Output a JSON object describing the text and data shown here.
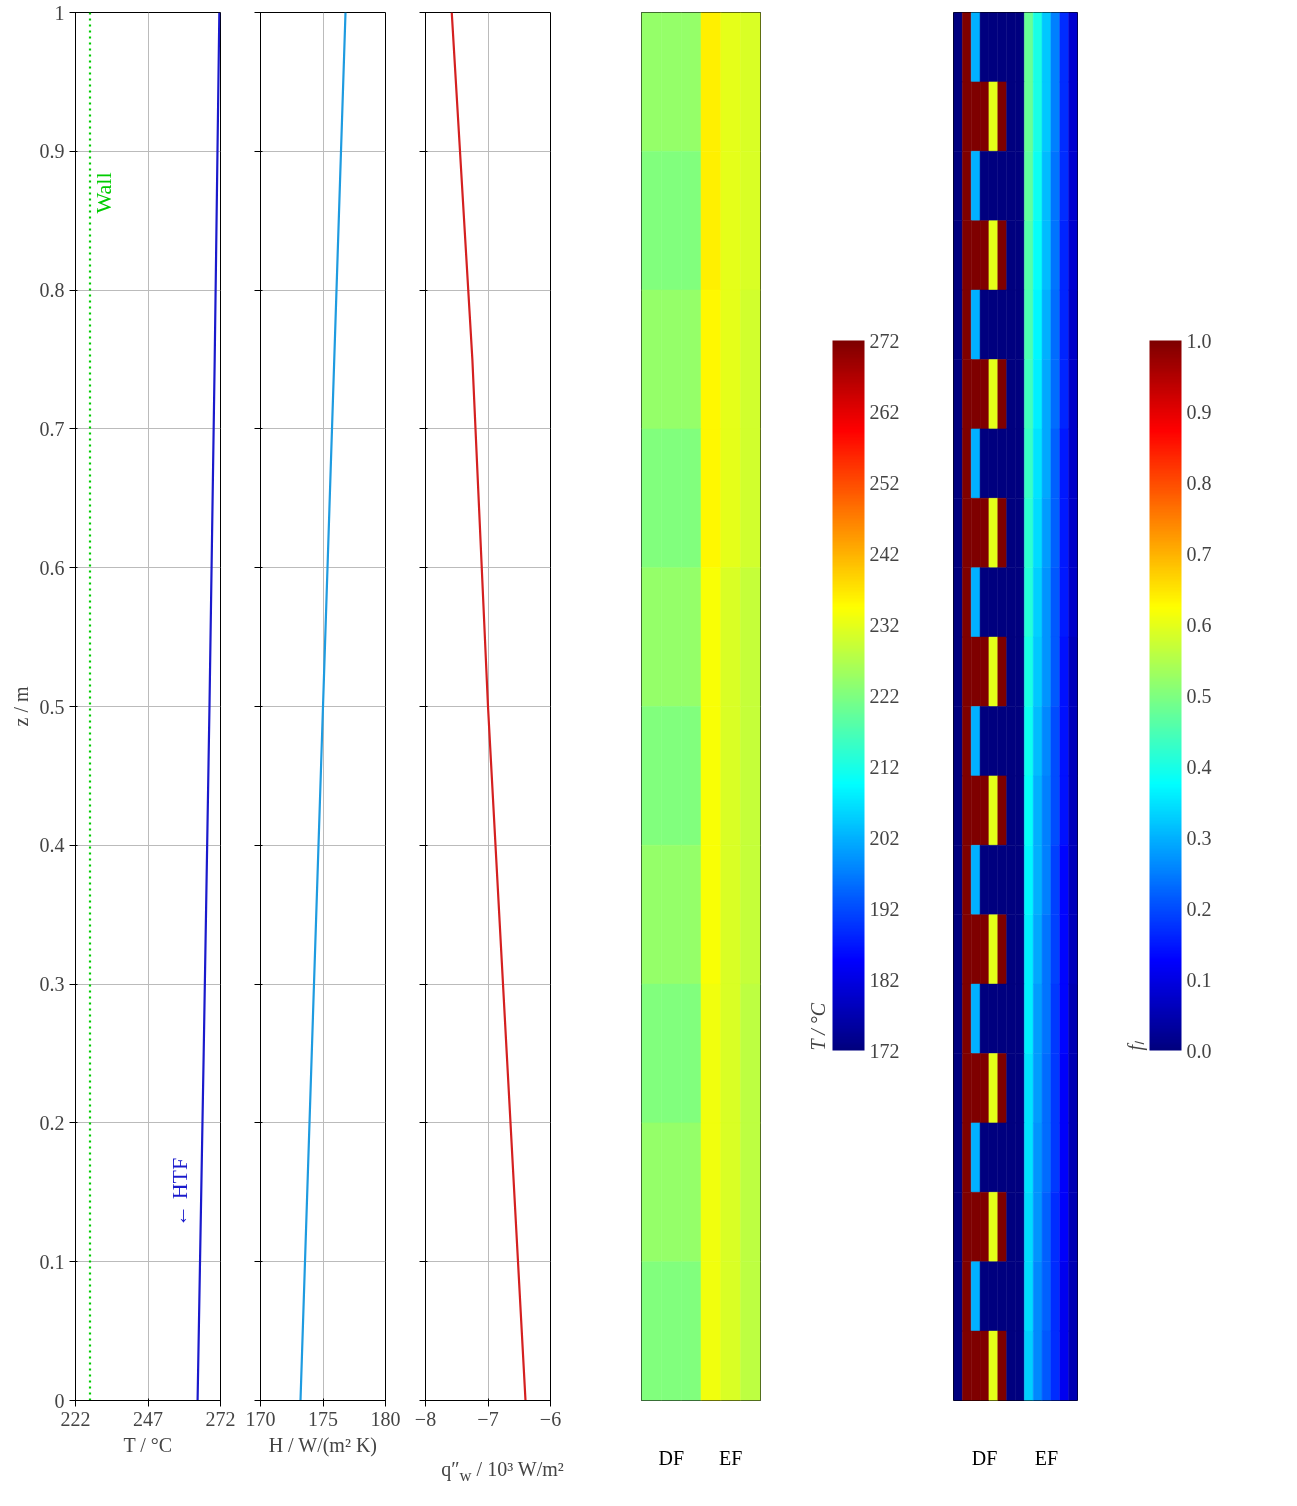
{
  "chart_data": [
    {
      "type": "line",
      "ylabel": "z / m",
      "xlabel": "T / °C",
      "xlim": [
        222,
        272
      ],
      "xticks": [
        222,
        247,
        272
      ],
      "ylim": [
        0,
        1
      ],
      "yticks": [
        0,
        0.1,
        0.2,
        0.3,
        0.4,
        0.5,
        0.6,
        0.7,
        0.8,
        0.9,
        1
      ],
      "grid": true,
      "series": [
        {
          "name": "Wall",
          "color": "#00cc00",
          "line_style": "dotted",
          "x": [
            227,
            227
          ],
          "values": [
            0,
            1
          ]
        },
        {
          "name": "← HTF",
          "color": "#1a1acc",
          "x": [
            264.1,
            266.2,
            268.2,
            270.0,
            271.6
          ],
          "values": [
            0,
            0.25,
            0.5,
            0.75,
            1
          ]
        }
      ]
    },
    {
      "type": "line",
      "xlabel": "H / W/(m² K)",
      "xlim": [
        170,
        180
      ],
      "xticks": [
        170,
        175,
        180
      ],
      "ylim": [
        0,
        1
      ],
      "yticks": [
        0,
        0.1,
        0.2,
        0.3,
        0.4,
        0.5,
        0.6,
        0.7,
        0.8,
        0.9,
        1
      ],
      "grid": true,
      "tick_labels": "x",
      "series": [
        {
          "color": "#1e9be0",
          "x": [
            173.2,
            174.1,
            175.0,
            175.9,
            176.8
          ],
          "values": [
            0,
            0.25,
            0.5,
            0.75,
            1
          ]
        }
      ]
    },
    {
      "type": "line",
      "xlabel": "q″$_{w}$ / 10³ W/m²",
      "xlim": [
        -8,
        -6
      ],
      "xticks": [
        {
          "value": -8,
          "label": "−8"
        },
        {
          "value": -7,
          "label": "−7"
        },
        {
          "value": -6,
          "label": "−6"
        }
      ],
      "ylim": [
        0,
        1
      ],
      "yticks": [
        0,
        0.1,
        0.2,
        0.3,
        0.4,
        0.5,
        0.6,
        0.7,
        0.8,
        0.9,
        1
      ],
      "grid": true,
      "tick_labels": "x",
      "series": [
        {
          "color": "#d42020",
          "x": [
            -6.4,
            -6.7,
            -7.0,
            -7.25,
            -7.58
          ],
          "values": [
            0,
            0.25,
            0.5,
            0.75,
            1
          ]
        }
      ]
    },
    {
      "type": "heatmap",
      "categories": [
        null,
        "DF",
        null,
        null,
        "EF",
        null
      ],
      "y_categories": [
        null,
        null,
        null,
        null,
        null,
        null,
        null,
        null,
        null,
        null
      ],
      "tick_labels": "x",
      "clim": [
        172,
        272
      ],
      "clabel": "T / °C",
      "cticks": [
        172,
        182,
        192,
        202,
        212,
        222,
        232,
        242,
        252,
        262,
        272
      ],
      "cells": [
        [
          224,
          224,
          224,
          236,
          232,
          231
        ],
        [
          222,
          222,
          222,
          236,
          232,
          231
        ],
        [
          224,
          224,
          224,
          235,
          232,
          230
        ],
        [
          222,
          222,
          222,
          235,
          232,
          230
        ],
        [
          224,
          224,
          224,
          234,
          231,
          229
        ],
        [
          222,
          222,
          222,
          234,
          231,
          229
        ],
        [
          224,
          224,
          224,
          234,
          231,
          229
        ],
        [
          222,
          222,
          222,
          233,
          231,
          228
        ],
        [
          224,
          224,
          224,
          233,
          231,
          228
        ],
        [
          222,
          222,
          222,
          233,
          231,
          228
        ]
      ]
    },
    {
      "type": "heatmap",
      "categories": [
        null,
        null,
        null,
        "DF",
        null,
        null,
        null,
        null,
        null,
        null,
        "EF",
        null,
        null,
        null
      ],
      "y_categories": [
        null,
        null,
        null,
        null,
        null,
        null,
        null,
        null,
        null,
        null,
        null,
        null,
        null,
        null,
        null,
        null,
        null,
        null,
        null,
        null
      ],
      "tick_labels": "x",
      "clim": [
        0,
        1
      ],
      "clabel": "fₗ",
      "cticks": [
        {
          "value": 0,
          "label": "0.0"
        },
        0.1,
        0.2,
        0.3,
        0.4,
        0.5,
        0.6,
        0.7,
        0.8,
        0.9,
        {
          "value": 1,
          "label": "1.0"
        }
      ],
      "cells": [
        [
          0,
          1,
          0.3,
          0,
          0,
          0,
          0,
          0,
          0.48,
          0.4,
          0.32,
          0.25,
          0.17,
          0.08
        ],
        [
          0,
          1,
          1,
          1,
          0.6,
          1,
          0,
          0,
          0.48,
          0.4,
          0.32,
          0.25,
          0.17,
          0.08
        ],
        [
          0,
          1,
          0.3,
          0,
          0,
          0,
          0,
          0,
          0.47,
          0.39,
          0.31,
          0.24,
          0.17,
          0.08
        ],
        [
          0,
          1,
          1,
          1,
          0.6,
          1,
          0,
          0,
          0.46,
          0.38,
          0.31,
          0.24,
          0.16,
          0.08
        ],
        [
          0,
          1,
          0.3,
          0,
          0,
          0,
          0,
          0,
          0.45,
          0.37,
          0.3,
          0.23,
          0.16,
          0.07
        ],
        [
          0,
          1,
          1,
          1,
          0.6,
          1,
          0,
          0,
          0.44,
          0.36,
          0.29,
          0.23,
          0.16,
          0.07
        ],
        [
          0,
          1,
          0.3,
          0,
          0,
          0,
          0,
          0,
          0.43,
          0.35,
          0.29,
          0.22,
          0.15,
          0.07
        ],
        [
          0,
          1,
          1,
          1,
          0.6,
          1,
          0,
          0,
          0.42,
          0.34,
          0.28,
          0.22,
          0.15,
          0.07
        ],
        [
          0,
          1,
          0.3,
          0,
          0,
          0,
          0,
          0,
          0.41,
          0.33,
          0.27,
          0.21,
          0.15,
          0.07
        ],
        [
          0,
          1,
          1,
          1,
          0.6,
          1,
          0,
          0,
          0.4,
          0.32,
          0.27,
          0.21,
          0.14,
          0.06
        ],
        [
          0,
          1,
          0.3,
          0,
          0,
          0,
          0,
          0,
          0.39,
          0.31,
          0.26,
          0.2,
          0.14,
          0.06
        ],
        [
          0,
          1,
          1,
          1,
          0.6,
          1,
          0,
          0,
          0.38,
          0.3,
          0.25,
          0.2,
          0.14,
          0.06
        ],
        [
          0,
          1,
          0.3,
          0,
          0,
          0,
          0,
          0,
          0.37,
          0.3,
          0.25,
          0.19,
          0.13,
          0.06
        ],
        [
          0,
          1,
          1,
          1,
          0.6,
          1,
          0,
          0,
          0.36,
          0.29,
          0.24,
          0.19,
          0.13,
          0.06
        ],
        [
          0,
          1,
          0.3,
          0,
          0,
          0,
          0,
          0,
          0.36,
          0.28,
          0.24,
          0.18,
          0.13,
          0.05
        ],
        [
          0,
          1,
          1,
          1,
          0.6,
          1,
          0,
          0,
          0.35,
          0.28,
          0.23,
          0.18,
          0.12,
          0.05
        ],
        [
          0,
          1,
          0.3,
          0,
          0,
          0,
          0,
          0,
          0.35,
          0.27,
          0.23,
          0.18,
          0.12,
          0.05
        ],
        [
          0,
          1,
          1,
          1,
          0.6,
          1,
          0,
          0,
          0.34,
          0.27,
          0.22,
          0.17,
          0.12,
          0.05
        ],
        [
          0,
          1,
          0.3,
          0,
          0,
          0,
          0,
          0,
          0.34,
          0.26,
          0.22,
          0.17,
          0.11,
          0.05
        ],
        [
          0,
          1,
          1,
          1,
          0.6,
          1,
          0,
          0,
          0.33,
          0.26,
          0.21,
          0.17,
          0.11,
          0.05
        ]
      ]
    }
  ]
}
